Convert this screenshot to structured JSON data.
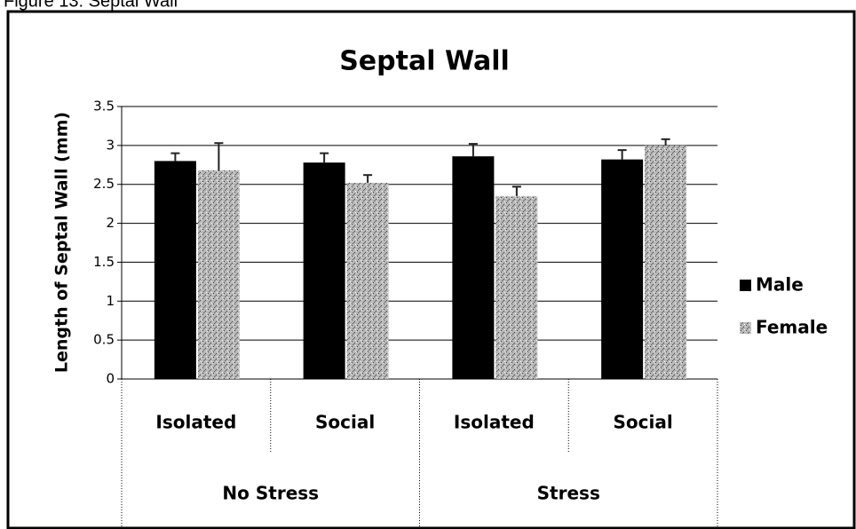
{
  "caption": "Figure 13: Septal Wall",
  "chart_data": {
    "type": "bar",
    "title": "Septal Wall",
    "y_label": "Length of Septal Wall (mm)",
    "categories": [
      "Isolated",
      "Social",
      "Isolated",
      "Social"
    ],
    "groups": [
      "No Stress",
      "Stress"
    ],
    "series": [
      {
        "name": "Male",
        "color": "#000000",
        "values": [
          2.8,
          2.78,
          2.86,
          2.82
        ],
        "errors": [
          0.1,
          0.12,
          0.16,
          0.12
        ]
      },
      {
        "name": "Female",
        "color": "#a8a8a8",
        "values": [
          2.68,
          2.52,
          2.35,
          3.0
        ],
        "errors": [
          0.35,
          0.1,
          0.12,
          0.08
        ]
      }
    ],
    "ylim": [
      0,
      3.5
    ],
    "yticks": [
      0,
      0.5,
      1,
      1.5,
      2,
      2.5,
      3,
      3.5
    ],
    "grid": true,
    "legend": "right"
  }
}
